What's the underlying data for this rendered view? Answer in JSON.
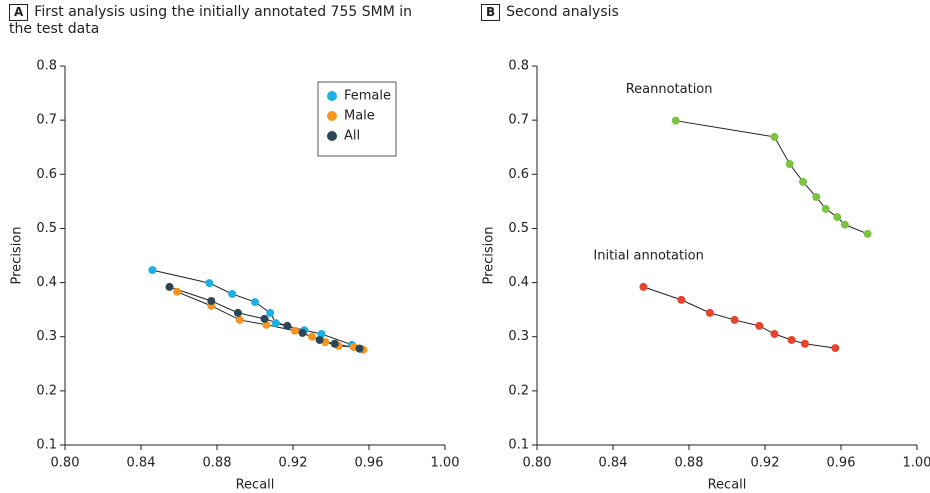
{
  "chart_data": [
    {
      "type": "line",
      "panel": "A",
      "title": "First analysis using the initially annotated 755 SMM in the test data",
      "xlabel": "Recall",
      "ylabel": "Precision",
      "xlim": [
        0.8,
        1.0
      ],
      "ylim": [
        0.1,
        0.8
      ],
      "xticks": [
        {
          "value": 0.8,
          "label": "0.80"
        },
        {
          "value": 0.84,
          "label": "0.84"
        },
        {
          "value": 0.88,
          "label": "0.88"
        },
        {
          "value": 0.92,
          "label": "0.92"
        },
        {
          "value": 0.96,
          "label": "0.96"
        },
        {
          "value": 1.0,
          "label": "1.00"
        }
      ],
      "yticks": [
        0.1,
        0.2,
        0.3,
        0.4,
        0.5,
        0.6,
        0.7,
        0.8
      ],
      "legend": "top-right",
      "series": [
        {
          "name": "Female",
          "color": "#1ab0e3",
          "x": [
            0.846,
            0.876,
            0.888,
            0.9,
            0.908,
            0.911,
            0.926,
            0.935,
            0.951,
            0.956
          ],
          "values": [
            0.423,
            0.399,
            0.379,
            0.364,
            0.344,
            0.325,
            0.312,
            0.305,
            0.285,
            0.277
          ]
        },
        {
          "name": "Male",
          "color": "#f7941d",
          "x": [
            0.859,
            0.877,
            0.892,
            0.906,
            0.921,
            0.93,
            0.937,
            0.944,
            0.952,
            0.957
          ],
          "values": [
            0.383,
            0.357,
            0.331,
            0.322,
            0.311,
            0.3,
            0.29,
            0.283,
            0.281,
            0.276
          ]
        },
        {
          "name": "All",
          "color": "#2b4655",
          "x": [
            0.855,
            0.877,
            0.891,
            0.905,
            0.917,
            0.925,
            0.934,
            0.942,
            0.955
          ],
          "values": [
            0.392,
            0.366,
            0.344,
            0.333,
            0.32,
            0.307,
            0.294,
            0.287,
            0.278
          ]
        }
      ]
    },
    {
      "type": "line",
      "panel": "B",
      "title": "Second analysis",
      "xlabel": "Recall",
      "ylabel": "Precision",
      "xlim": [
        0.8,
        1.0
      ],
      "ylim": [
        0.1,
        0.8
      ],
      "xticks": [
        {
          "value": 0.8,
          "label": "0.80"
        },
        {
          "value": 0.84,
          "label": "0.84"
        },
        {
          "value": 0.88,
          "label": "0.88"
        },
        {
          "value": 0.92,
          "label": "0.92"
        },
        {
          "value": 0.96,
          "label": "0.96"
        },
        {
          "value": 1.0,
          "label": "1.00"
        }
      ],
      "yticks": [
        0.1,
        0.2,
        0.3,
        0.4,
        0.5,
        0.6,
        0.7,
        0.8
      ],
      "legend": "direct",
      "series": [
        {
          "name": "Reannotation",
          "color": "#7cc243",
          "x": [
            0.873,
            0.925,
            0.933,
            0.94,
            0.947,
            0.952,
            0.958,
            0.962,
            0.974
          ],
          "values": [
            0.699,
            0.669,
            0.619,
            0.586,
            0.558,
            0.536,
            0.521,
            0.507,
            0.49
          ]
        },
        {
          "name": "Initial annotation",
          "color": "#e8432f",
          "x": [
            0.856,
            0.876,
            0.891,
            0.904,
            0.917,
            0.925,
            0.934,
            0.941,
            0.957
          ],
          "values": [
            0.392,
            0.368,
            0.344,
            0.331,
            0.32,
            0.305,
            0.294,
            0.287,
            0.279
          ]
        }
      ]
    }
  ]
}
